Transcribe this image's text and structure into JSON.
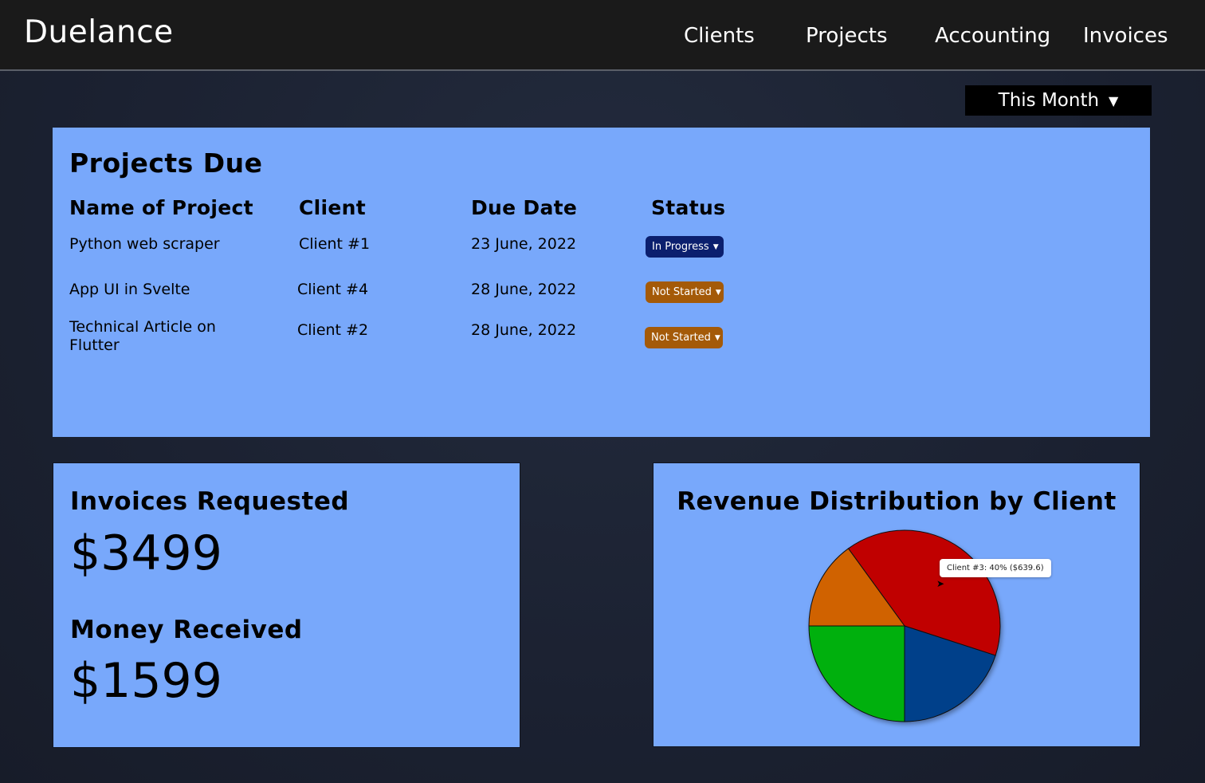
{
  "brand": "Duelance",
  "nav": [
    "Clients",
    "Projects",
    "Accounting",
    "Invoices"
  ],
  "period": {
    "label": "This Month",
    "icon": "caret-down-icon"
  },
  "projects": {
    "title": "Projects Due",
    "columns": [
      "Name of Project",
      "Client",
      "Due Date",
      "Status"
    ],
    "rows": [
      {
        "name": "Python web scraper",
        "client": "Client #1",
        "due": "23 June, 2022",
        "status": "In Progress"
      },
      {
        "name": "App UI in Svelte",
        "client": "Client #4",
        "due": "28 June, 2022",
        "status": "Not Started"
      },
      {
        "name": "Technical Article on Flutter",
        "client": "Client #2",
        "due": "28 June, 2022",
        "status": "Not Started"
      }
    ],
    "status_colors": {
      "In Progress": "#0b1f6e",
      "Not Started": "#a45a08"
    }
  },
  "invoices": {
    "requested_label": "Invoices Requested",
    "requested_value": "$3499",
    "received_label": "Money Received",
    "received_value": "$1599"
  },
  "revenue": {
    "title": "Revenue Distribution by Client",
    "tooltip": "Client #3: 40% ($639.6)"
  },
  "chart_data": {
    "type": "pie",
    "title": "Revenue Distribution by Client",
    "slices": [
      {
        "label": "Client #3",
        "value": 40,
        "color": "#c00000"
      },
      {
        "label": "",
        "value": 20,
        "color": "#003f8a"
      },
      {
        "label": "",
        "value": 25,
        "color": "#00b011"
      },
      {
        "label": "",
        "value": 15,
        "color": "#d06200"
      }
    ]
  },
  "colors": {
    "card": "#78a8fb",
    "topbar": "#1a1a1a"
  }
}
